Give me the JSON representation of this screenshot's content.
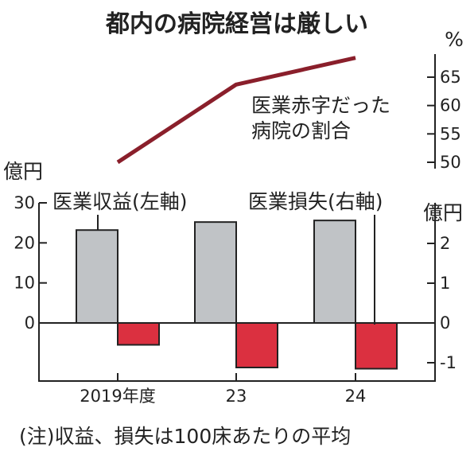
{
  "chart_data": {
    "title": "都内の病院経営は厳しい",
    "note": "(注)収益、損失は100床あたりの平均",
    "categories": [
      "2019年度",
      "23",
      "24"
    ],
    "colors": {
      "revenue_bar": "#c0c3c6",
      "loss_bar": "#db3040",
      "line": "#8a1f2b",
      "ink": "#222222"
    },
    "bars": {
      "type": "bar",
      "left_axis_label": "億円",
      "right_axis_label": "億円",
      "left_ylim": [
        -12.5,
        30
      ],
      "right_ylim": [
        -1.25,
        3
      ],
      "left_ticks": [
        0,
        10,
        20,
        30
      ],
      "right_ticks": [
        -1,
        0,
        1,
        2
      ],
      "series": [
        {
          "name": "医業収益(左軸)",
          "axis": "left",
          "values": [
            23.2,
            25.2,
            25.6
          ]
        },
        {
          "name": "医業損失(右軸)",
          "axis": "right",
          "values": [
            -0.55,
            -1.12,
            -1.15
          ]
        }
      ]
    },
    "line": {
      "type": "line",
      "axis_label": "%",
      "ylim": [
        50,
        68
      ],
      "ticks": [
        50,
        55,
        60,
        65
      ],
      "series": [
        {
          "name": "医業赤字だった\n病院の割合",
          "values": [
            50,
            63.7,
            68.4
          ]
        }
      ]
    }
  }
}
